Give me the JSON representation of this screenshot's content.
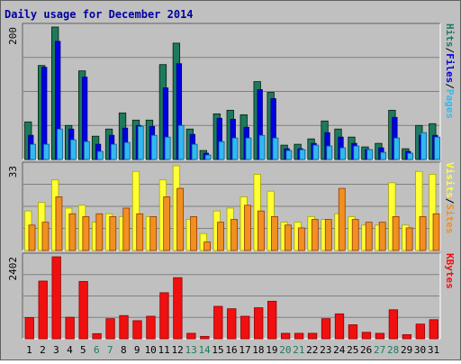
{
  "title": "Daily usage for December 2014",
  "colors": {
    "background": "#C0C0C0",
    "title": "#0000A0",
    "grid": "#808080",
    "hits": "#1E7A5E",
    "files": "#0000E0",
    "pages": "#33B8F0",
    "visits": "#FFFF33",
    "sites": "#F09020",
    "kbytes": "#F01010",
    "weekday_tick": "#000000",
    "weekend_tick": "#1E7A5E"
  },
  "chart_data": [
    {
      "type": "bar",
      "panel": "hits-files-pages",
      "ymax_label": "200",
      "legend": [
        {
          "name": "Pages",
          "color": "#33B8F0"
        },
        {
          "name": "Files",
          "color": "#0000E0"
        },
        {
          "name": "Hits",
          "color": "#1E7A5E"
        }
      ],
      "categories": [
        "1",
        "2",
        "3",
        "4",
        "5",
        "6",
        "7",
        "8",
        "9",
        "10",
        "11",
        "12",
        "13",
        "14",
        "15",
        "16",
        "17",
        "18",
        "19",
        "20",
        "21",
        "22",
        "23",
        "24",
        "25",
        "26",
        "27",
        "28",
        "29",
        "30",
        "31"
      ],
      "weekend_days": [
        "6",
        "7",
        "13",
        "14",
        "20",
        "21",
        "27",
        "28"
      ],
      "series": [
        {
          "name": "Hits",
          "values": [
            42,
            105,
            148,
            38,
            99,
            26,
            34,
            52,
            44,
            44,
            106,
            130,
            34,
            10,
            51,
            55,
            50,
            87,
            75,
            16,
            17,
            23,
            43,
            34,
            25,
            14,
            18,
            55,
            12,
            38,
            40
          ]
        },
        {
          "name": "Files",
          "values": [
            27,
            103,
            132,
            34,
            92,
            17,
            27,
            35,
            38,
            37,
            80,
            107,
            28,
            7,
            46,
            45,
            36,
            78,
            68,
            12,
            12,
            18,
            30,
            25,
            18,
            11,
            13,
            47,
            9,
            27,
            27
          ]
        },
        {
          "name": "Pages",
          "values": [
            17,
            17,
            34,
            22,
            20,
            9,
            17,
            19,
            37,
            27,
            25,
            38,
            17,
            5,
            20,
            24,
            24,
            27,
            24,
            10,
            11,
            16,
            15,
            13,
            15,
            11,
            8,
            24,
            7,
            30,
            25
          ]
        }
      ]
    },
    {
      "type": "bar",
      "panel": "visits-sites",
      "ymax_label": "33",
      "legend": [
        {
          "name": "Sites",
          "color": "#F09020"
        },
        {
          "name": "Visits",
          "color": "#FFFF33"
        }
      ],
      "categories": [
        "1",
        "2",
        "3",
        "4",
        "5",
        "6",
        "7",
        "8",
        "9",
        "10",
        "11",
        "12",
        "13",
        "14",
        "15",
        "16",
        "17",
        "18",
        "19",
        "20",
        "21",
        "22",
        "23",
        "24",
        "25",
        "26",
        "27",
        "28",
        "29",
        "30",
        "31"
      ],
      "series": [
        {
          "name": "Visits",
          "values": [
            14,
            17,
            25,
            15,
            16,
            10,
            13,
            12,
            28,
            12,
            25,
            30,
            11,
            6,
            14,
            15,
            19,
            27,
            21,
            10,
            10,
            12,
            11,
            13,
            12,
            9,
            9,
            24,
            9,
            28,
            27
          ]
        },
        {
          "name": "Sites",
          "values": [
            9,
            10,
            19,
            13,
            12,
            13,
            12,
            15,
            13,
            12,
            19,
            22,
            12,
            3,
            10,
            11,
            16,
            14,
            12,
            9,
            8,
            11,
            11,
            22,
            11,
            10,
            10,
            12,
            8,
            12,
            13
          ]
        }
      ]
    },
    {
      "type": "bar",
      "panel": "kbytes",
      "ymax_label": "2402",
      "legend": [
        {
          "name": "KBytes",
          "color": "#F01010"
        }
      ],
      "categories": [
        "1",
        "2",
        "3",
        "4",
        "5",
        "6",
        "7",
        "8",
        "9",
        "10",
        "11",
        "12",
        "13",
        "14",
        "15",
        "16",
        "17",
        "18",
        "19",
        "20",
        "21",
        "22",
        "23",
        "24",
        "25",
        "26",
        "27",
        "28",
        "29",
        "30",
        "31"
      ],
      "series": [
        {
          "name": "KBytes",
          "values": [
            620,
            1690,
            2402,
            630,
            1680,
            150,
            590,
            680,
            530,
            660,
            1350,
            1790,
            160,
            70,
            950,
            880,
            660,
            910,
            1100,
            160,
            160,
            160,
            590,
            730,
            410,
            190,
            160,
            850,
            120,
            430,
            560
          ]
        }
      ]
    }
  ]
}
